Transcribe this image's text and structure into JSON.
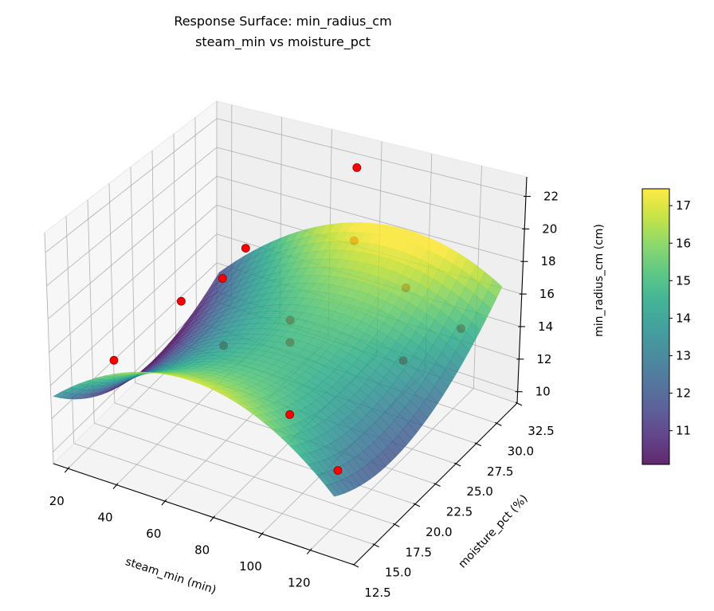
{
  "chart_data": {
    "type": "surface3d",
    "title": "Response Surface: min_radius_cm",
    "subtitle": "steam_min vs moisture_pct",
    "xlabel": "steam_min (min)",
    "ylabel": "moisture_pct (%)",
    "zlabel": "min_radius_cm (cm)",
    "xlim": [
      14,
      138
    ],
    "ylim": [
      12.5,
      32.5
    ],
    "zlim": [
      9.3,
      23.2
    ],
    "xticks": [
      20,
      40,
      60,
      80,
      100,
      120
    ],
    "yticks": [
      12.5,
      15.0,
      17.5,
      20.0,
      22.5,
      25.0,
      27.5,
      30.0,
      32.5
    ],
    "zticks": [
      10,
      12,
      14,
      16,
      18,
      20,
      22
    ],
    "grid": true,
    "surface": {
      "x_nodes": [
        15,
        72.5,
        130
      ],
      "y_nodes": [
        12.5,
        22.5,
        32.5
      ],
      "z": [
        [
          13.4,
          17.0,
          12.9
        ],
        [
          9.9,
          14.8,
          12.0
        ],
        [
          11.4,
          17.6,
          16.1
        ]
      ],
      "colormap": "viridis",
      "alpha": 0.8
    },
    "points": [
      {
        "x": 19.4,
        "y": 18.5,
        "z": 13.0
      },
      {
        "x": 33.6,
        "y": 22.5,
        "z": 15.5
      },
      {
        "x": 36.8,
        "y": 26.5,
        "z": 15.2
      },
      {
        "x": 32.6,
        "y": 30.5,
        "z": 15.0
      },
      {
        "x": 43.9,
        "y": 24.5,
        "z": 12.2
      },
      {
        "x": 72.5,
        "y": 24.1,
        "z": 15.4
      },
      {
        "x": 72.5,
        "y": 24.1,
        "z": 14.0
      },
      {
        "x": 98.2,
        "y": 16.5,
        "z": 14.4
      },
      {
        "x": 70.3,
        "y": 32.5,
        "z": 21.1
      },
      {
        "x": 79.8,
        "y": 29.5,
        "z": 18.2
      },
      {
        "x": 104.4,
        "y": 28.5,
        "z": 16.8
      },
      {
        "x": 117.3,
        "y": 31.5,
        "z": 13.4
      },
      {
        "x": 117.3,
        "y": 24.5,
        "z": 14.8
      },
      {
        "x": 117.9,
        "y": 16.5,
        "z": 12.0
      }
    ],
    "point_color": "#ff0000",
    "point_edge_color": "#8b0000",
    "colorbar": {
      "range": [
        10.1,
        17.45
      ],
      "ticks": [
        11,
        12,
        13,
        14,
        15,
        16,
        17
      ]
    }
  }
}
